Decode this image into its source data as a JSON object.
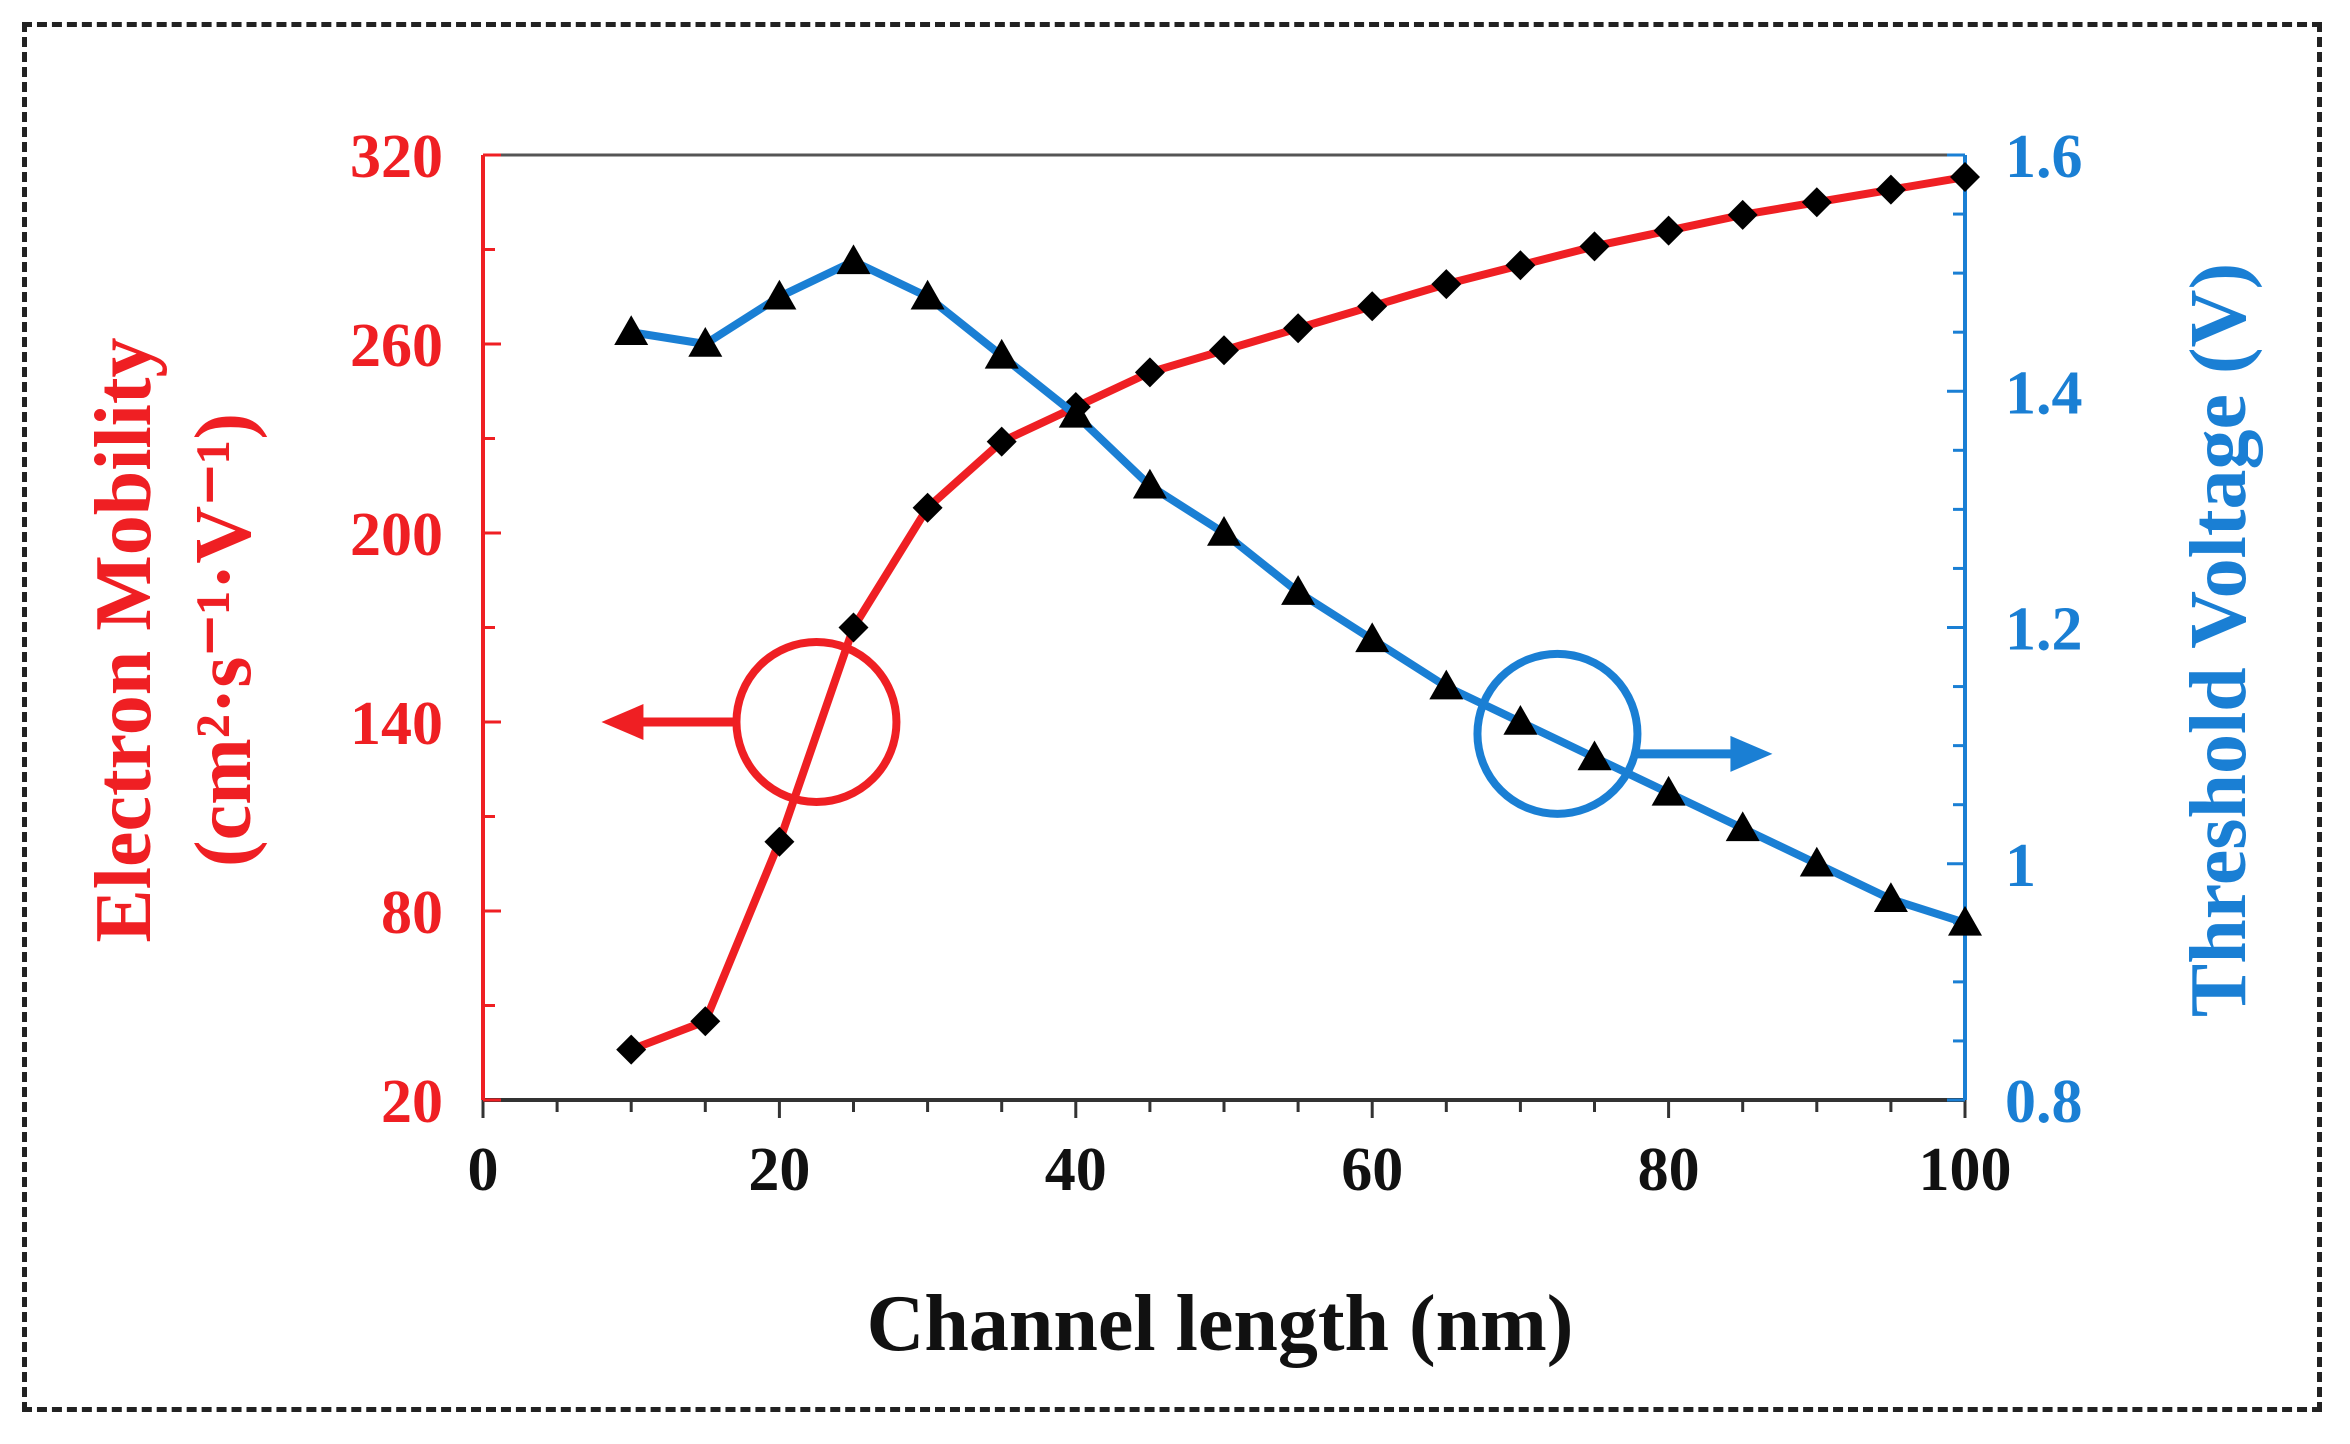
{
  "chart_data": {
    "type": "line",
    "title": "",
    "xlabel": "Channel length (nm)",
    "ylabel_left_line1": "Electron Mobility",
    "ylabel_left_line2": "(cm²·s⁻¹·V⁻¹)",
    "ylabel_right": "Threshold Voltage (V)",
    "xlim": [
      0,
      100
    ],
    "ylim_left": [
      20,
      320
    ],
    "ylim_right": [
      0.8,
      1.6
    ],
    "x_ticks": [
      "0",
      "20",
      "40",
      "60",
      "80",
      "100"
    ],
    "y_left_ticks": [
      "20",
      "80",
      "140",
      "200",
      "260",
      "320"
    ],
    "y_right_ticks": [
      "0.8",
      "1",
      "1.2",
      "1.4",
      "1.6"
    ],
    "x": [
      10,
      15,
      20,
      25,
      30,
      35,
      40,
      45,
      50,
      55,
      60,
      65,
      70,
      75,
      80,
      85,
      90,
      95,
      100
    ],
    "series": [
      {
        "axis": "left",
        "marker": "diamond",
        "color": "#ef1f23",
        "values": [
          36,
          45,
          102,
          170,
          208,
          229,
          240,
          251,
          258,
          265,
          272,
          279,
          285,
          291,
          296,
          301,
          305,
          309,
          313
        ]
      },
      {
        "axis": "right",
        "marker": "triangle",
        "color": "#1a7fd4",
        "values": [
          1.45,
          1.44,
          1.48,
          1.51,
          1.48,
          1.43,
          1.38,
          1.32,
          1.28,
          1.23,
          1.19,
          1.15,
          1.12,
          1.09,
          1.06,
          1.03,
          1.0,
          0.97,
          0.95
        ]
      }
    ],
    "annotations": [
      {
        "type": "circle-arrow",
        "series": 0,
        "direction": "left",
        "x": 22.5,
        "y_left": 140,
        "color": "#ef1f23"
      },
      {
        "type": "circle-arrow",
        "series": 1,
        "direction": "right",
        "x": 72.5,
        "y_right": 1.11,
        "color": "#1a7fd4"
      }
    ],
    "grid": false,
    "legend": "none"
  }
}
